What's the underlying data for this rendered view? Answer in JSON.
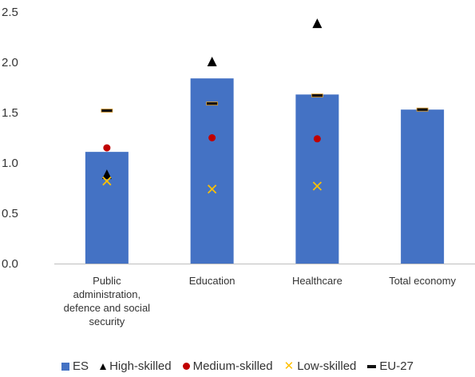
{
  "chart_data": {
    "type": "bar",
    "categories": [
      [
        "Public",
        "administration,",
        "defence and social",
        "security"
      ],
      [
        "Education"
      ],
      [
        "Healthcare"
      ],
      [
        "Total economy"
      ]
    ],
    "ylim": [
      0,
      2.5
    ],
    "yticks": [
      "0.0",
      "0.5",
      "1.0",
      "1.5",
      "2.0",
      "2.5"
    ],
    "grid": false,
    "legend_position": "bottom",
    "series": [
      {
        "name": "ES",
        "kind": "bar",
        "color": "#4472C4",
        "values": [
          1.11,
          1.84,
          1.68,
          1.53
        ]
      },
      {
        "name": "High-skilled",
        "kind": "triangle",
        "color": "#000000",
        "values": [
          0.88,
          2.0,
          2.38,
          null
        ]
      },
      {
        "name": "Medium-skilled",
        "kind": "dot",
        "color": "#C00000",
        "values": [
          1.15,
          1.25,
          1.24,
          null
        ]
      },
      {
        "name": "Low-skilled",
        "kind": "x",
        "color": "#FFC000",
        "values": [
          0.82,
          0.74,
          0.77,
          null
        ]
      },
      {
        "name": "EU-27",
        "kind": "dash",
        "color": "#111111",
        "values": [
          1.52,
          1.59,
          1.67,
          1.53
        ]
      }
    ]
  }
}
